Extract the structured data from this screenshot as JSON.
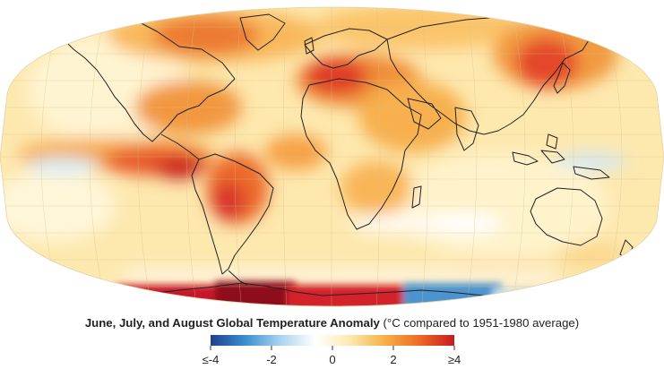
{
  "caption": {
    "title": "June, July, and August Global Temperature Anomaly",
    "subtitle": "(°C compared to 1951-1980 average)"
  },
  "legend": {
    "tick_labels": [
      "≤-4",
      "-2",
      "0",
      "2",
      "≥4"
    ],
    "tick_values": [
      -4,
      -2,
      0,
      2,
      4
    ],
    "colors": [
      "#1f3f8f",
      "#3a8fd0",
      "#a9d4ee",
      "#ffffff",
      "#fde9b0",
      "#f7b046",
      "#ef6a24",
      "#c81a1f"
    ]
  },
  "map": {
    "projection": "Robinson",
    "ocean_base_color": "#fde8ae",
    "coastline_color": "#222222",
    "graticule": true
  }
}
